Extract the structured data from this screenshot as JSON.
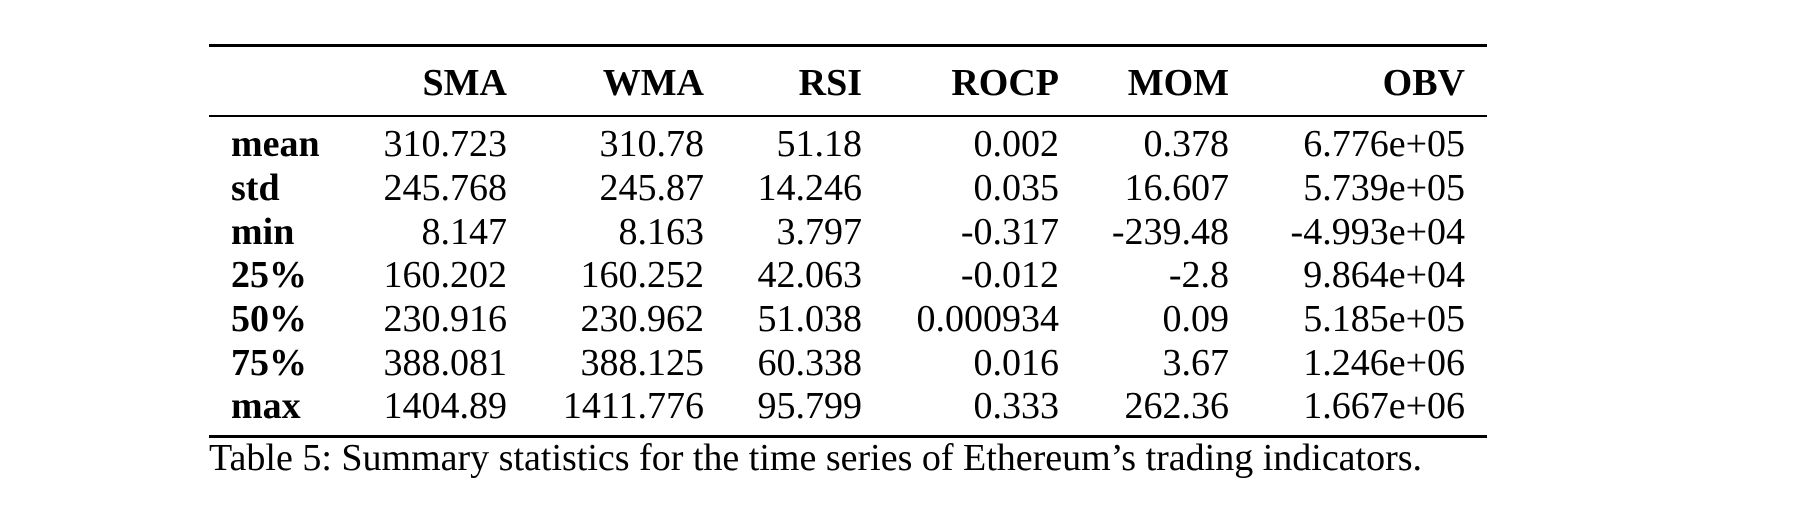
{
  "table": {
    "columns": [
      "",
      "SMA",
      "WMA",
      "RSI",
      "ROCP",
      "MOM",
      "OBV"
    ],
    "rows": [
      {
        "label": "mean",
        "values": [
          "310.723",
          "310.78",
          "51.18",
          "0.002",
          "0.378",
          "6.776e+05"
        ]
      },
      {
        "label": "std",
        "values": [
          "245.768",
          "245.87",
          "14.246",
          "0.035",
          "16.607",
          "5.739e+05"
        ]
      },
      {
        "label": "min",
        "values": [
          "8.147",
          "8.163",
          "3.797",
          "-0.317",
          "-239.48",
          "-4.993e+04"
        ]
      },
      {
        "label": "25%",
        "values": [
          "160.202",
          "160.252",
          "42.063",
          "-0.012",
          "-2.8",
          "9.864e+04"
        ]
      },
      {
        "label": "50%",
        "values": [
          "230.916",
          "230.962",
          "51.038",
          "0.000934",
          "0.09",
          "5.185e+05"
        ]
      },
      {
        "label": "75%",
        "values": [
          "388.081",
          "388.125",
          "60.338",
          "0.016",
          "3.67",
          "1.246e+06"
        ]
      },
      {
        "label": "max",
        "values": [
          "1404.89",
          "1411.776",
          "95.799",
          "0.333",
          "262.36",
          "1.667e+06"
        ]
      }
    ]
  },
  "caption": "Table 5: Summary statistics for the time series of Ethereum’s trading indicators."
}
